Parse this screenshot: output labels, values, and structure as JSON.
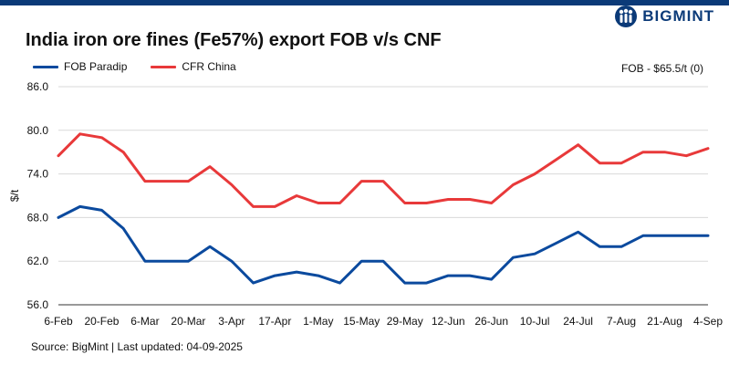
{
  "brand": {
    "name": "BIGMINT",
    "logo_icon": "bigmint-logo-icon",
    "color": "#0b3a78"
  },
  "header": {
    "title": "India iron ore fines (Fe57%) export FOB v/s CNF",
    "note": "FOB - $65.5/t (0)"
  },
  "footer": {
    "source": "Source: BigMint | Last updated: 04-09-2025"
  },
  "colors": {
    "fob": "#0b4a9e",
    "cfr": "#e8393a",
    "grid": "#d9d9d9",
    "axis": "#333333"
  },
  "chart_data": {
    "type": "line",
    "title": "India iron ore fines (Fe57%) export FOB v/s CNF",
    "xlabel": "",
    "ylabel": "$/t",
    "ylim": [
      56,
      86
    ],
    "yticks": [
      "56.0",
      "62.0",
      "68.0",
      "74.0",
      "80.0",
      "86.0"
    ],
    "ytick_values": [
      56,
      62,
      68,
      74,
      80,
      86
    ],
    "x_tick_labels": [
      "6-Feb",
      "20-Feb",
      "6-Mar",
      "20-Mar",
      "3-Apr",
      "17-Apr",
      "1-May",
      "15-May",
      "29-May",
      "12-Jun",
      "26-Jun",
      "10-Jul",
      "24-Jul",
      "7-Aug",
      "21-Aug",
      "4-Sep"
    ],
    "x": [
      "6-Feb",
      "13-Feb",
      "20-Feb",
      "27-Feb",
      "6-Mar",
      "13-Mar",
      "20-Mar",
      "27-Mar",
      "3-Apr",
      "10-Apr",
      "17-Apr",
      "24-Apr",
      "1-May",
      "8-May",
      "15-May",
      "22-May",
      "29-May",
      "5-Jun",
      "12-Jun",
      "19-Jun",
      "26-Jun",
      "3-Jul",
      "10-Jul",
      "17-Jul",
      "24-Jul",
      "31-Jul",
      "7-Aug",
      "14-Aug",
      "21-Aug",
      "28-Aug",
      "4-Sep"
    ],
    "grid": "horizontal",
    "legend_position": "top-left",
    "series": [
      {
        "name": "FOB Paradip",
        "color": "#0b4a9e",
        "values": [
          68,
          69.5,
          69,
          66.5,
          62,
          62,
          62,
          64,
          62,
          59,
          60,
          60.5,
          60,
          59,
          62,
          62,
          59,
          59,
          60,
          60,
          59.5,
          62.5,
          63,
          64.5,
          66,
          64,
          64,
          65.5,
          65.5,
          65.5,
          65.5
        ]
      },
      {
        "name": "CFR China",
        "color": "#e8393a",
        "values": [
          76.5,
          79.5,
          79,
          77,
          73,
          73,
          73,
          75,
          72.5,
          69.5,
          69.5,
          71,
          70,
          70,
          73,
          73,
          70,
          70,
          70.5,
          70.5,
          70,
          72.5,
          74,
          76,
          78,
          75.5,
          75.5,
          77,
          77,
          76.5,
          77.5
        ]
      }
    ]
  }
}
